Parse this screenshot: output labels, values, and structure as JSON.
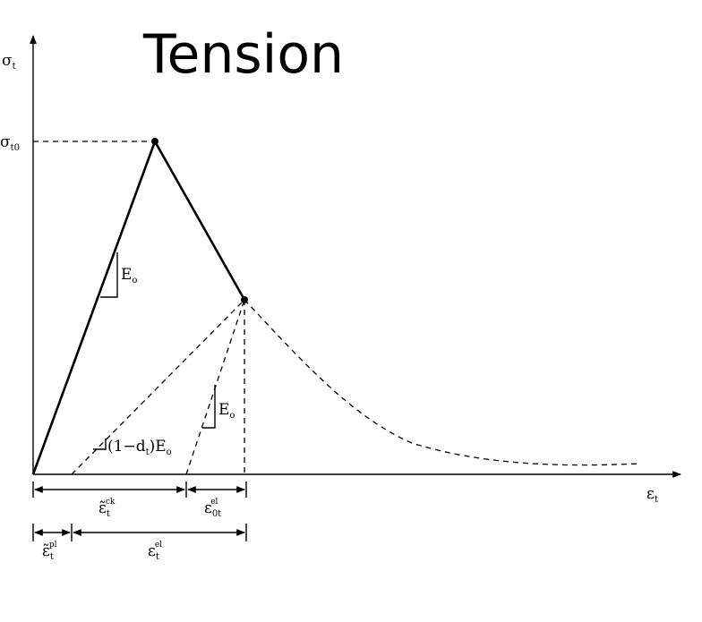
{
  "title": "Tension",
  "axes": {
    "y_symbol": "σ",
    "y_sub": "t",
    "x_symbol": "ε",
    "x_sub": "t"
  },
  "peak_label": {
    "symbol": "σ",
    "sub": "t0"
  },
  "slopes": {
    "elastic": {
      "symbol": "E",
      "sub": "o"
    },
    "unloading": {
      "symbol": "E",
      "sub": "o"
    },
    "damaged": {
      "prefix": "(1−d",
      "sub": "t",
      "suffix": ")E",
      "sub2": "o"
    }
  },
  "strain_labels": {
    "cracking": {
      "symbol": "ε̃",
      "sub": "t",
      "sup": "ck"
    },
    "elastic_0": {
      "symbol": "ε",
      "sub": "0t",
      "sup": "el"
    },
    "plastic": {
      "symbol": "ε̃",
      "sub": "t",
      "sup": "pl"
    },
    "elastic": {
      "symbol": "ε",
      "sub": "t",
      "sup": "el"
    }
  }
}
